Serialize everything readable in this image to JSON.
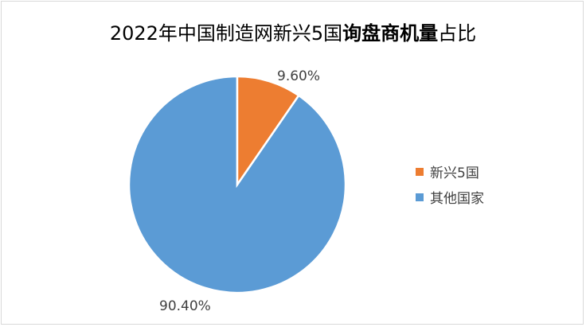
{
  "chart_data": {
    "type": "pie",
    "title": "2022年中国制造网新兴5国询盘商机量占比",
    "title_parts": {
      "normal_prefix": "2022年中国制造网新兴5国",
      "bold": "询盘商机量",
      "normal_suffix": "占比"
    },
    "categories": [
      "新兴5国",
      "其他国家"
    ],
    "values": [
      9.6,
      90.4
    ],
    "data_labels": [
      "9.60%",
      "90.40%"
    ],
    "colors": [
      "#ED7D31",
      "#5B9BD5"
    ],
    "legend_placement": "right"
  }
}
